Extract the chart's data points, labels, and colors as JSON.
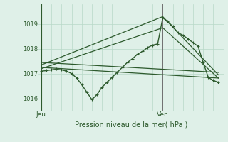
{
  "title": "Pression niveau de la mer( hPa )",
  "xlabel_ticks": [
    "Jeu",
    "Ven"
  ],
  "xlabel_tick_positions": [
    0,
    24
  ],
  "ylabel_ticks": [
    1016,
    1017,
    1018,
    1019
  ],
  "ylim": [
    1015.5,
    1019.8
  ],
  "xlim": [
    -0.5,
    36
  ],
  "bg_color": "#dff0e8",
  "grid_color": "#b8d8c8",
  "line_color": "#2d5a2d",
  "ven_x": 24,
  "series": [
    {
      "x": [
        0,
        1,
        2,
        3,
        4,
        5,
        6,
        7,
        8,
        9,
        10,
        11,
        12,
        13,
        14,
        15,
        16,
        17,
        18,
        19,
        20,
        21,
        22,
        23,
        24,
        25,
        26,
        27,
        28,
        29,
        30,
        31,
        32,
        33,
        34,
        35
      ],
      "y": [
        1017.1,
        1017.12,
        1017.15,
        1017.18,
        1017.15,
        1017.1,
        1017.0,
        1016.82,
        1016.55,
        1016.25,
        1015.95,
        1016.15,
        1016.45,
        1016.65,
        1016.85,
        1017.05,
        1017.25,
        1017.45,
        1017.6,
        1017.78,
        1017.9,
        1018.05,
        1018.15,
        1018.2,
        1019.25,
        1019.1,
        1018.9,
        1018.65,
        1018.55,
        1018.4,
        1018.25,
        1018.1,
        1017.45,
        1016.85,
        1016.72,
        1016.65
      ],
      "marker": true,
      "lw": 1.0
    },
    {
      "x": [
        0,
        24,
        35
      ],
      "y": [
        1017.35,
        1019.3,
        1016.95
      ],
      "marker": false,
      "lw": 0.9
    },
    {
      "x": [
        0,
        24,
        35
      ],
      "y": [
        1017.2,
        1018.85,
        1016.82
      ],
      "marker": false,
      "lw": 0.9
    },
    {
      "x": [
        0,
        35
      ],
      "y": [
        1017.45,
        1017.05
      ],
      "marker": false,
      "lw": 0.9
    },
    {
      "x": [
        0,
        35
      ],
      "y": [
        1017.25,
        1016.82
      ],
      "marker": false,
      "lw": 0.9
    }
  ]
}
